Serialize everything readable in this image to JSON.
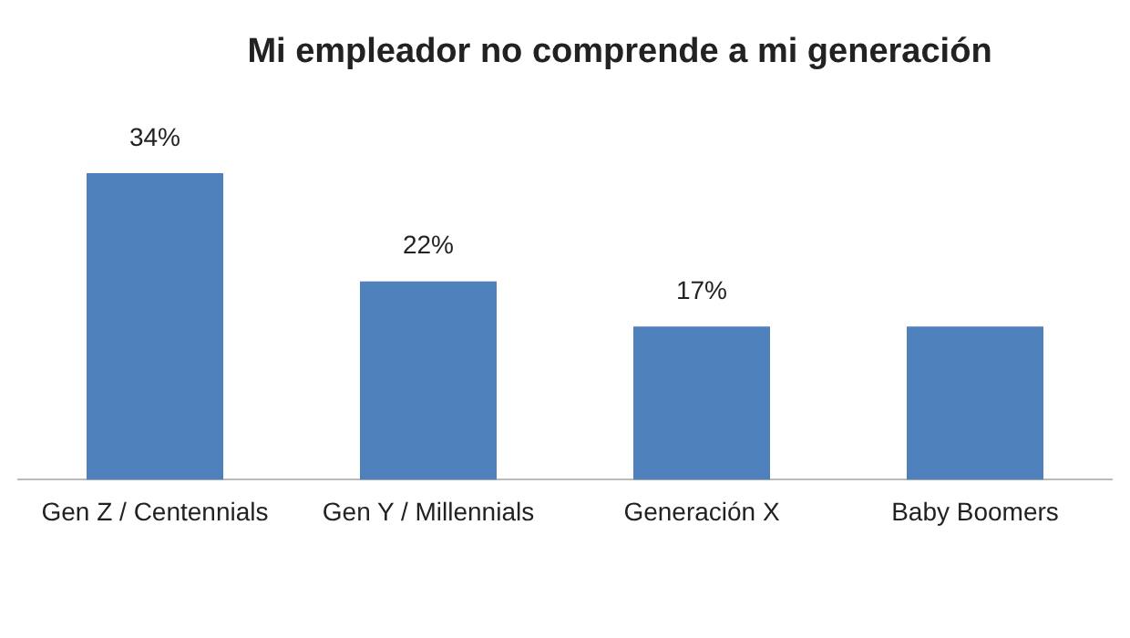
{
  "chart_data": {
    "type": "bar",
    "title": "Mi empleador no comprende a mi generación",
    "categories": [
      "Gen Z / Centennials",
      "Gen Y / Millennials",
      "Generación X",
      "Baby Boomers"
    ],
    "values": [
      34,
      22,
      17,
      17
    ],
    "value_labels": [
      "34%",
      "22%",
      "17%",
      null
    ],
    "color": "#4f81bd",
    "grid": false,
    "legend": false
  }
}
